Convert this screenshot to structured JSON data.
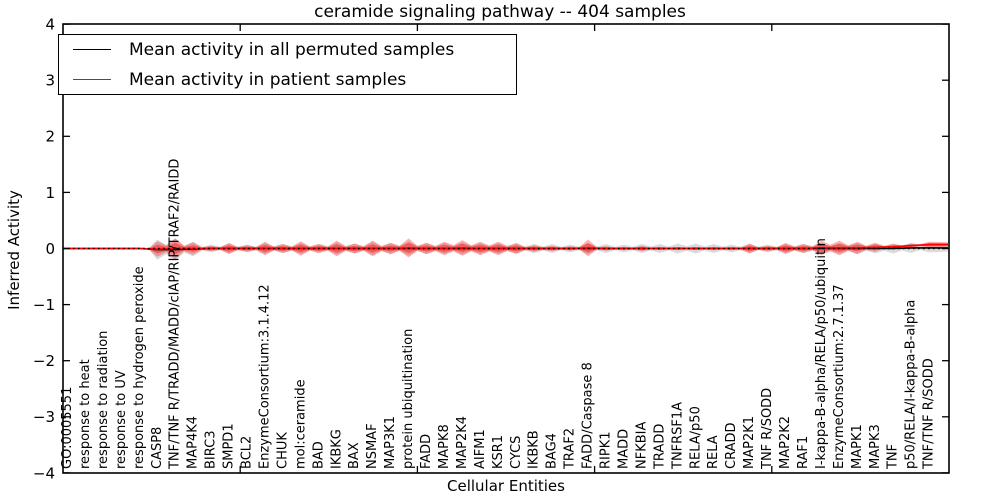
{
  "figure": {
    "title": "ceramide signaling pathway -- 404 samples"
  },
  "legend": {
    "items": [
      {
        "name": "permuted",
        "label": "Mean activity in all permuted samples",
        "color": "#000000"
      },
      {
        "name": "patient",
        "label": "Mean activity in patient samples",
        "color": "#ff0000"
      }
    ]
  },
  "chart_data": {
    "type": "line",
    "title": "ceramide signaling pathway -- 404 samples",
    "xlabel": "Cellular Entities",
    "ylabel": "Inferred Activity",
    "ylim": [
      -4,
      4
    ],
    "grid": false,
    "legend_position": "upper left",
    "zero_line": {
      "style": "dotted",
      "color": "#000000",
      "y": 0
    },
    "y_tick_values": [
      4,
      3,
      2,
      1,
      0,
      -1,
      -2,
      -3,
      -4
    ],
    "y_tick_labels": [
      "4",
      "3",
      "2",
      "1",
      "0",
      "−1",
      "−2",
      "−3",
      "−4"
    ],
    "x_major_ticks_at_categories": [
      10,
      20,
      30,
      40
    ],
    "categories": [
      "GO:0005551",
      "response to heat",
      "response to radiation",
      "response to UV",
      "response to hydrogen peroxide",
      "CASP8",
      "TNF/TNF R/TRADD/MADD/cIAP/RIP/TRAF2/RAIDD",
      "MAP4K4",
      "BIRC3",
      "SMPD1",
      "BCL2",
      "EnzymeConsortium:3.1.4.12",
      "CHUK",
      "mol:ceramide",
      "BAD",
      "IKBKG",
      "BAX",
      "NSMAF",
      "MAP3K1",
      "protein ubiquitination",
      "FADD",
      "MAPK8",
      "MAP2K4",
      "AIFM1",
      "KSR1",
      "CYCS",
      "IKBKB",
      "BAG4",
      "TRAF2",
      "FADD/Caspase 8",
      "RIPK1",
      "MADD",
      "NFKBIA",
      "TRADD",
      "TNFRSF1A",
      "RELA/p50",
      "RELA",
      "CRADD",
      "MAP2K1",
      "TNF R/SODD",
      "MAP2K2",
      "RAF1",
      "I-kappa-B-alpha/RELA/p50/ubiquitin",
      "EnzymeConsortium:2.7.1.37",
      "MAPK1",
      "MAPK3",
      "TNF",
      "p50/RELA/I-kappa-B-alpha",
      "TNF/TNF R/SODD"
    ],
    "series": [
      {
        "name": "Mean activity in all permuted samples",
        "color": "#000000",
        "values": [
          0,
          0,
          0,
          0,
          0,
          -0.02,
          -0.02,
          -0.01,
          0,
          0,
          0,
          0,
          0,
          0,
          0,
          0,
          0,
          0,
          0,
          0,
          0,
          0,
          0,
          0,
          0,
          0,
          0,
          0,
          0,
          0,
          0,
          0,
          0,
          0,
          0,
          0,
          0,
          0,
          0,
          0,
          0,
          0,
          0,
          0,
          0,
          0,
          0,
          0.01,
          0.01
        ],
        "band_half_widths": [
          0,
          0,
          0,
          0,
          0,
          0.18,
          0.2,
          0.13,
          0.07,
          0.09,
          0.07,
          0.1,
          0.08,
          0.1,
          0.08,
          0.11,
          0.09,
          0.12,
          0.1,
          0.13,
          0.1,
          0.1,
          0.11,
          0.1,
          0.1,
          0.09,
          0.08,
          0.08,
          0.07,
          0.1,
          0.08,
          0.07,
          0.08,
          0.08,
          0.09,
          0.09,
          0.08,
          0.07,
          0.08,
          0.07,
          0.08,
          0.08,
          0.1,
          0.1,
          0.1,
          0.09,
          0.09,
          0.09,
          0.08
        ],
        "band_color": "#6e6e6e"
      },
      {
        "name": "Mean activity in patient samples",
        "color": "#ff0000",
        "values": [
          0,
          0,
          0,
          0,
          0,
          -0.01,
          0,
          0,
          0,
          0,
          0,
          0,
          0,
          0,
          0,
          0,
          0,
          0,
          0,
          0.01,
          0,
          0,
          0.01,
          0,
          0,
          0,
          0,
          0,
          0,
          0.01,
          0,
          0,
          0,
          0,
          0,
          0,
          0,
          0,
          0,
          0,
          0,
          0,
          0.01,
          0.01,
          0.01,
          0.02,
          0.03,
          0.05,
          0.07
        ],
        "band_half_widths": [
          0,
          0,
          0,
          0,
          0,
          0.14,
          0.18,
          0.11,
          0.05,
          0.1,
          0.06,
          0.12,
          0.08,
          0.13,
          0.08,
          0.14,
          0.09,
          0.14,
          0.1,
          0.17,
          0.1,
          0.12,
          0.14,
          0.12,
          0.12,
          0.1,
          0.06,
          0.05,
          0.04,
          0.15,
          0.04,
          0.03,
          0.05,
          0.03,
          0.03,
          0.03,
          0.03,
          0.03,
          0.09,
          0.05,
          0.1,
          0.08,
          0.13,
          0.13,
          0.11,
          0.08,
          0.05,
          0.04,
          0.05
        ],
        "band_color": "#ff0000"
      }
    ]
  }
}
